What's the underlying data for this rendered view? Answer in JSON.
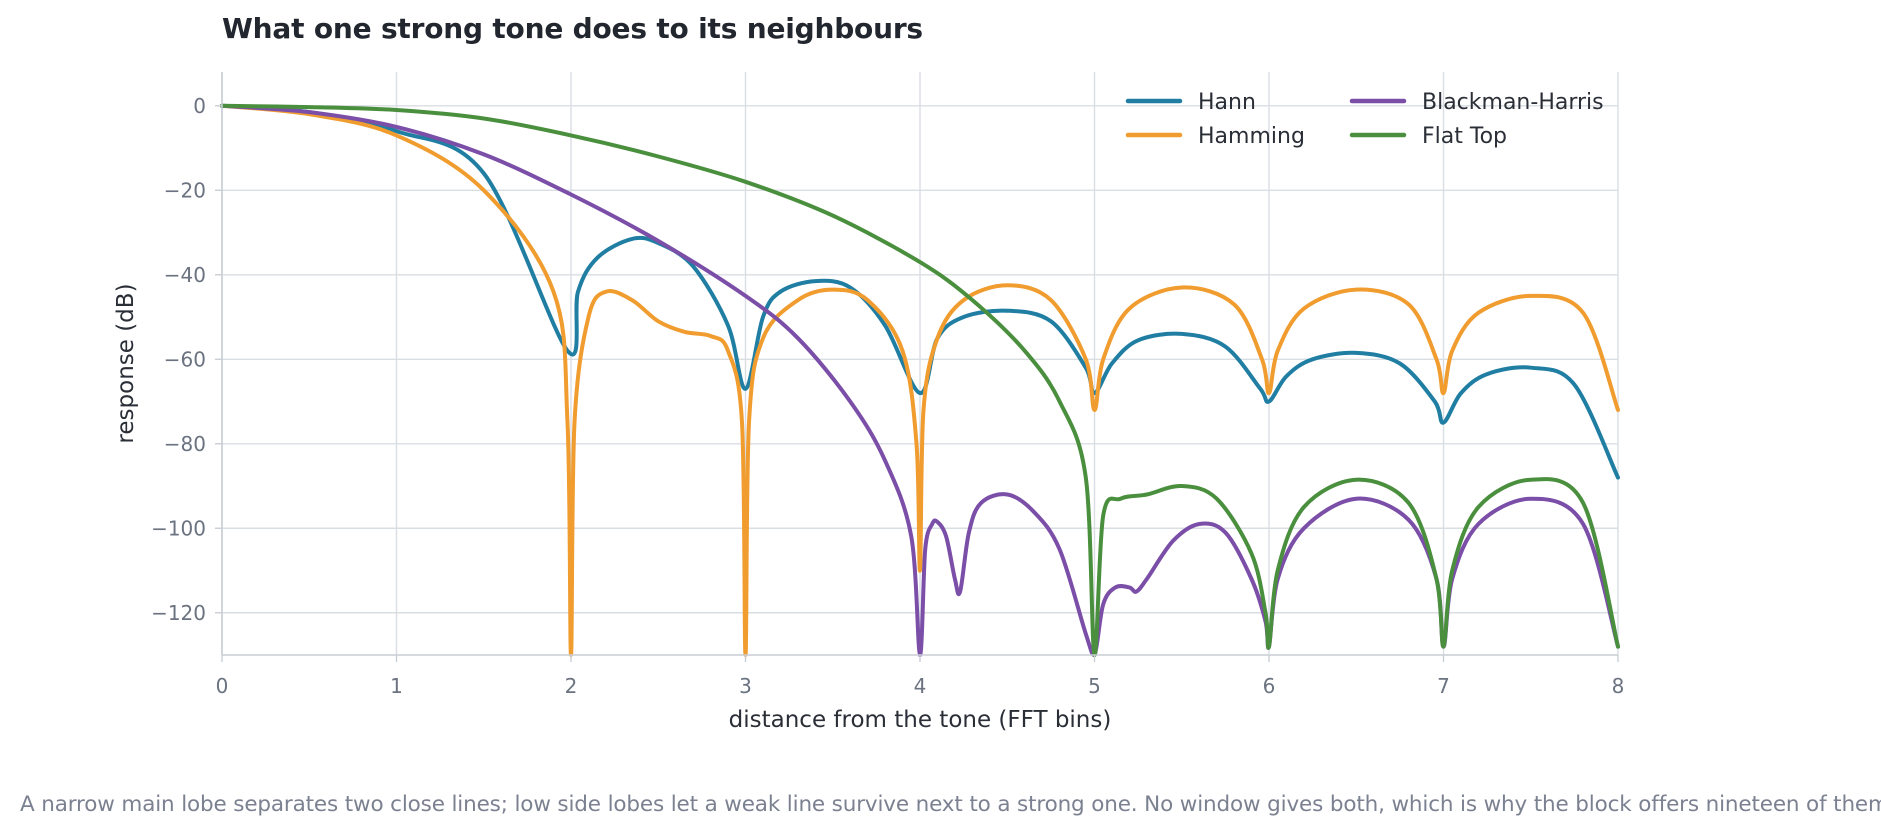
{
  "caption": "A narrow main lobe separates two close lines; low side lobes let a weak line survive next to a strong one. No window gives both, which is why the block offers nineteen of them.",
  "chart_data": {
    "type": "line",
    "title": "What one strong tone does to its neighbours",
    "xlabel": "distance from the tone (FFT bins)",
    "ylabel": "response (dB)",
    "xlim": [
      0,
      8
    ],
    "ylim": [
      -130,
      8
    ],
    "xticks": [
      "0",
      "1",
      "2",
      "3",
      "4",
      "5",
      "6",
      "7",
      "8"
    ],
    "yticks": [
      "0",
      "−20",
      "−40",
      "−60",
      "−80",
      "−100",
      "−120"
    ],
    "grid": true,
    "legend_position": "top-right",
    "series": [
      {
        "name": "Hann",
        "color": "#217ea3",
        "x": [
          0,
          0.5,
          1,
          1.5,
          1.98,
          2.04,
          2.15,
          2.35,
          2.5,
          2.7,
          2.9,
          3,
          3.1,
          3.2,
          3.4,
          3.6,
          3.8,
          4,
          4.1,
          4.25,
          4.5,
          4.75,
          4.95,
          5,
          5.1,
          5.25,
          5.5,
          5.75,
          5.95,
          6,
          6.1,
          6.25,
          6.5,
          6.75,
          6.95,
          7,
          7.1,
          7.25,
          7.5,
          7.75,
          8
        ],
        "y": [
          0,
          -1.5,
          -6,
          -16,
          -58,
          -44,
          -36,
          -31.5,
          -32.5,
          -38,
          -52,
          -67,
          -50,
          -44,
          -41.5,
          -43,
          -52,
          -68,
          -55,
          -50,
          -48.5,
          -51,
          -62,
          -68,
          -61,
          -55.5,
          -54,
          -57,
          -67,
          -70,
          -64,
          -60,
          -58.5,
          -61,
          -70,
          -75,
          -68,
          -63.5,
          -62,
          -66,
          -88
        ]
      },
      {
        "name": "Hamming",
        "color": "#f09c2f",
        "x": [
          0,
          0.5,
          1,
          1.5,
          1.9,
          1.98,
          2,
          2.02,
          2.1,
          2.2,
          2.35,
          2.5,
          2.65,
          2.8,
          2.9,
          2.98,
          3,
          3.02,
          3.1,
          3.3,
          3.5,
          3.7,
          3.9,
          3.98,
          4,
          4.02,
          4.1,
          4.25,
          4.5,
          4.75,
          4.95,
          5,
          5.05,
          5.2,
          5.5,
          5.8,
          5.96,
          6,
          6.05,
          6.2,
          6.5,
          6.8,
          6.96,
          7,
          7.05,
          7.2,
          7.5,
          7.8,
          8
        ],
        "y": [
          0,
          -2,
          -7,
          -20,
          -44,
          -75,
          -130,
          -75,
          -50,
          -44,
          -46,
          -51,
          -53.5,
          -54.5,
          -58,
          -75,
          -130,
          -75,
          -55,
          -46,
          -43.5,
          -46,
          -58,
          -80,
          -110,
          -72,
          -55,
          -46,
          -42.5,
          -46,
          -60,
          -72,
          -60,
          -48,
          -43,
          -47,
          -60,
          -68,
          -58,
          -48,
          -43.5,
          -47,
          -60,
          -68,
          -58,
          -49,
          -45,
          -49,
          -72
        ]
      },
      {
        "name": "Blackman-Harris",
        "color": "#7b4ea8",
        "x": [
          0,
          0.5,
          1,
          1.5,
          2,
          2.5,
          3,
          3.3,
          3.6,
          3.8,
          3.95,
          4,
          4.03,
          4.07,
          4.1,
          4.15,
          4.2,
          4.23,
          4.28,
          4.35,
          4.5,
          4.65,
          4.8,
          4.95,
          5,
          5.05,
          5.12,
          5.2,
          5.24,
          5.3,
          5.45,
          5.6,
          5.75,
          5.9,
          5.98,
          6,
          6.05,
          6.2,
          6.5,
          6.8,
          6.96,
          7,
          7.05,
          7.2,
          7.5,
          7.8,
          8
        ],
        "y": [
          0,
          -1.5,
          -5,
          -11.5,
          -21,
          -32,
          -45,
          -55,
          -70,
          -84,
          -102,
          -130,
          -105,
          -99,
          -98.5,
          -102,
          -112,
          -115,
          -101,
          -94,
          -92,
          -96,
          -105,
          -125,
          -130,
          -118,
          -114,
          -114,
          -115,
          -112,
          -103,
          -99,
          -101,
          -112,
          -122,
          -128,
          -112,
          -100,
          -93,
          -98,
          -112,
          -128,
          -112,
          -99,
          -93,
          -99,
          -128
        ]
      },
      {
        "name": "Flat Top",
        "color": "#4a8f3d",
        "x": [
          0,
          0.5,
          1,
          1.5,
          2,
          2.5,
          3,
          3.5,
          4,
          4.3,
          4.6,
          4.8,
          4.95,
          5,
          5.05,
          5.15,
          5.3,
          5.5,
          5.7,
          5.9,
          5.98,
          6,
          6.05,
          6.2,
          6.5,
          6.8,
          6.96,
          7,
          7.05,
          7.2,
          7.5,
          7.8,
          8
        ],
        "y": [
          0,
          -0.3,
          -1,
          -3,
          -7,
          -12,
          -18,
          -26,
          -37,
          -46,
          -58,
          -70,
          -88,
          -130,
          -97,
          -93,
          -92,
          -90,
          -93,
          -106,
          -120,
          -128,
          -110,
          -95,
          -88.5,
          -94,
          -112,
          -128,
          -110,
          -95,
          -88.5,
          -94,
          -128
        ]
      }
    ]
  }
}
